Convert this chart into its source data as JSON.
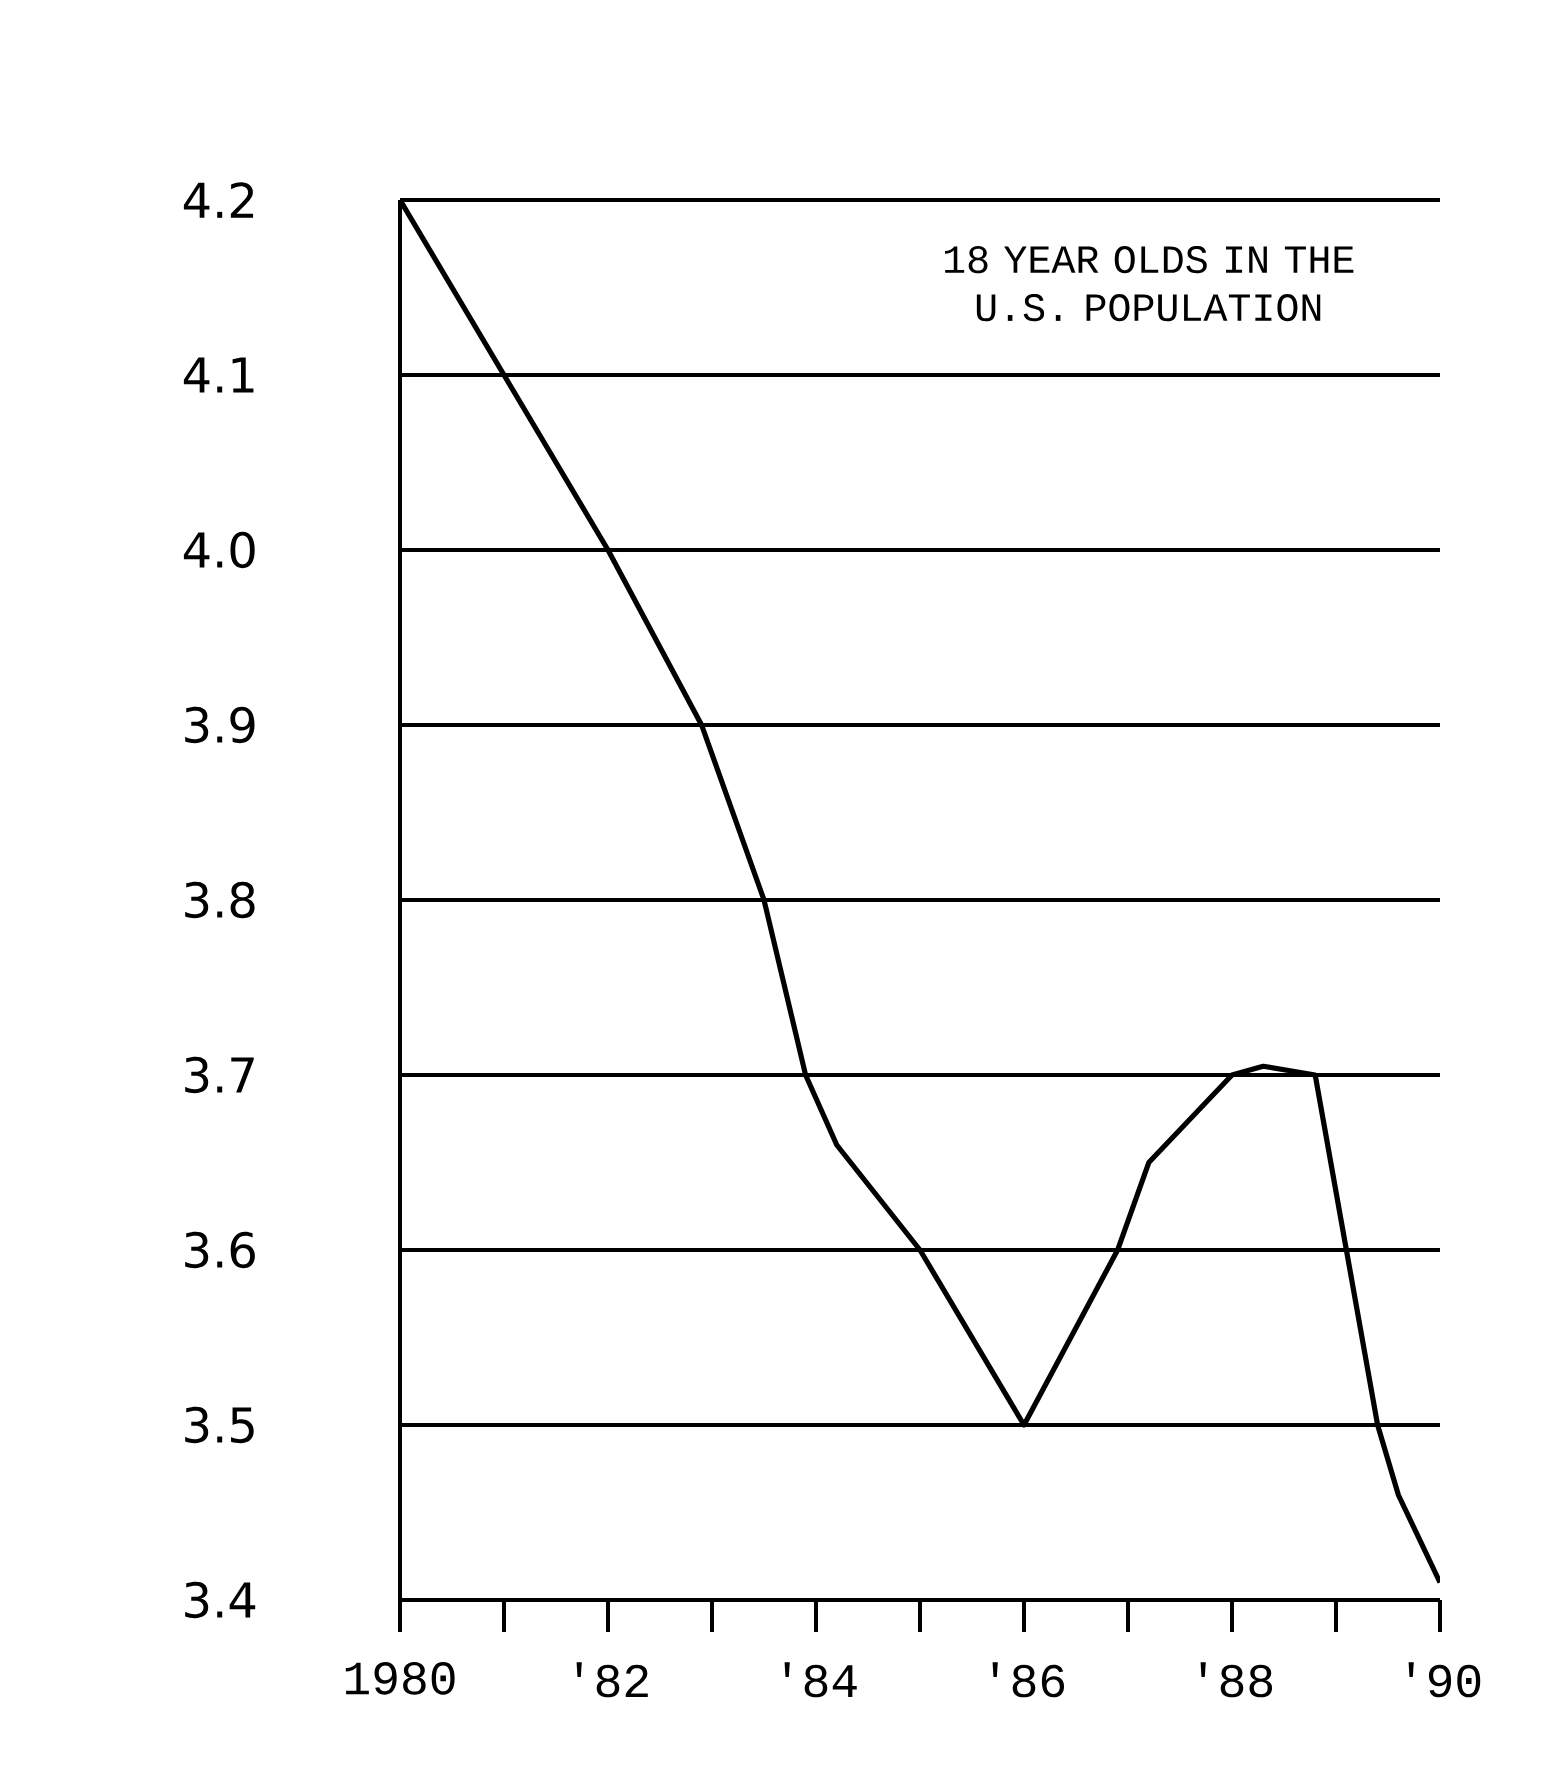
{
  "chart_data": {
    "type": "line",
    "title": "18 YEAR OLDS IN THE U.S. POPULATION",
    "x": [
      1980,
      1981,
      1982,
      1982.9,
      1983.5,
      1983.9,
      1984.2,
      1985,
      1986,
      1986.9,
      1987.2,
      1988,
      1988.3,
      1988.8,
      1989.1,
      1989.4,
      1989.6,
      1990
    ],
    "series": [
      {
        "color": "#000000",
        "values": [
          4.2,
          4.1,
          4.0,
          3.9,
          3.8,
          3.7,
          3.66,
          3.6,
          3.5,
          3.6,
          3.65,
          3.7,
          3.705,
          3.7,
          3.6,
          3.5,
          3.46,
          3.41
        ]
      }
    ],
    "xlim": [
      1980,
      1990
    ],
    "xticks": [
      {
        "value": 1980,
        "label": "1980"
      },
      {
        "value": 1982,
        "label": "'82"
      },
      {
        "value": 1984,
        "label": "'84"
      },
      {
        "value": 1986,
        "label": "'86"
      },
      {
        "value": 1988,
        "label": "'88"
      },
      {
        "value": 1990,
        "label": "'90"
      }
    ],
    "ylim": [
      3.4,
      4.2
    ],
    "yticks": [
      {
        "value": 3.4,
        "label": "3.4"
      },
      {
        "value": 3.5,
        "label": "3.5"
      },
      {
        "value": 3.6,
        "label": "3.6"
      },
      {
        "value": 3.7,
        "label": "3.7"
      },
      {
        "value": 3.8,
        "label": "3.8"
      },
      {
        "value": 3.9,
        "label": "3.9"
      },
      {
        "value": 4.0,
        "label": "4.0"
      },
      {
        "value": 4.1,
        "label": "4.1"
      },
      {
        "value": 4.2,
        "label": "4.2"
      }
    ],
    "grid": "y",
    "marker": "none",
    "line_style": "solid"
  }
}
